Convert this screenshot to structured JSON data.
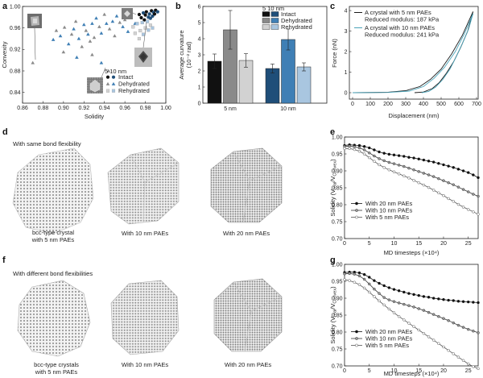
{
  "panels": {
    "a": "a",
    "b": "b",
    "c": "c",
    "d": "d",
    "e": "e",
    "f": "f",
    "g": "g"
  },
  "colors": {
    "black": "#111111",
    "dark_blue": "#1f4e79",
    "mid_blue": "#3f7fb5",
    "light_blue": "#a9c6e0",
    "dark_grey": "#222222",
    "mid_grey": "#8a8a8a",
    "light_grey": "#d2d2d2",
    "black_curve": "#1a1a1a",
    "teal_curve": "#4aa3b8"
  },
  "chart_data": [
    {
      "panel": "a",
      "type": "scatter",
      "xlabel": "Solidity",
      "ylabel": "Convexity",
      "xlim": [
        0.86,
        1.0
      ],
      "ylim": [
        0.82,
        1.0
      ],
      "xticks": [
        "0.86",
        "0.88",
        "0.90",
        "0.92",
        "0.94",
        "0.96",
        "0.98",
        "1.00"
      ],
      "yticks": [
        "0.84",
        "0.88",
        "0.92",
        "0.96",
        "1.00"
      ],
      "legend_header": "5 10 nm",
      "legend": [
        "Intact",
        "Dehydrated",
        "Rehydrated"
      ],
      "series": [
        {
          "name": "Intact",
          "marker": "circle",
          "points": [
            [
              0.974,
              0.985
            ],
            [
              0.978,
              0.988
            ],
            [
              0.981,
              0.99
            ],
            [
              0.984,
              0.986
            ],
            [
              0.986,
              0.992
            ],
            [
              0.988,
              0.989
            ],
            [
              0.99,
              0.993
            ],
            [
              0.983,
              0.98
            ],
            [
              0.98,
              0.984
            ],
            [
              0.987,
              0.982
            ],
            [
              0.976,
              0.979
            ],
            [
              0.985,
              0.978
            ],
            [
              0.989,
              0.986
            ],
            [
              0.992,
              0.99
            ],
            [
              0.979,
              0.975
            ]
          ]
        },
        {
          "name": "Dehydrated",
          "marker": "triangle",
          "points": [
            [
              0.87,
              0.895
            ],
            [
              0.89,
              0.938
            ],
            [
              0.893,
              0.955
            ],
            [
              0.897,
              0.945
            ],
            [
              0.901,
              0.961
            ],
            [
              0.905,
              0.93
            ],
            [
              0.908,
              0.948
            ],
            [
              0.91,
              0.958
            ],
            [
              0.912,
              0.972
            ],
            [
              0.915,
              0.94
            ],
            [
              0.918,
              0.925
            ],
            [
              0.92,
              0.966
            ],
            [
              0.922,
              0.955
            ],
            [
              0.924,
              0.948
            ],
            [
              0.926,
              0.935
            ],
            [
              0.928,
              0.968
            ],
            [
              0.93,
              0.942
            ],
            [
              0.932,
              0.978
            ],
            [
              0.935,
              0.962
            ],
            [
              0.937,
              0.95
            ],
            [
              0.94,
              0.985
            ],
            [
              0.942,
              0.968
            ],
            [
              0.945,
              0.958
            ],
            [
              0.948,
              0.972
            ],
            [
              0.95,
              0.945
            ],
            [
              0.952,
              0.982
            ],
            [
              0.955,
              0.97
            ],
            [
              0.958,
              0.962
            ],
            [
              0.96,
              0.975
            ],
            [
              0.963,
              0.953
            ],
            [
              0.966,
              0.98
            ],
            [
              0.97,
              0.968
            ],
            [
              0.9,
              0.915
            ],
            [
              0.913,
              0.905
            ],
            [
              0.928,
              0.91
            ],
            [
              0.937,
              0.895
            ],
            [
              0.944,
              0.88
            ]
          ]
        },
        {
          "name": "Rehydrated",
          "marker": "square",
          "points": [
            [
              0.968,
              0.962
            ],
            [
              0.972,
              0.968
            ],
            [
              0.975,
              0.955
            ],
            [
              0.977,
              0.97
            ],
            [
              0.98,
              0.96
            ],
            [
              0.982,
              0.972
            ],
            [
              0.985,
              0.965
            ],
            [
              0.978,
              0.948
            ],
            [
              0.974,
              0.94
            ],
            [
              0.983,
              0.956
            ],
            [
              0.97,
              0.95
            ],
            [
              0.987,
              0.96
            ]
          ]
        }
      ]
    },
    {
      "panel": "b",
      "type": "bar",
      "ylabel": "Average curvature (10⁻² rad)",
      "ylabel_main": "Average curvature",
      "ylabel_unit": "(10⁻² rad)",
      "ylim": [
        0,
        6
      ],
      "yticks": [
        "0",
        "1",
        "2",
        "3",
        "4",
        "5",
        "6"
      ],
      "categories": [
        "5 nm",
        "10 nm"
      ],
      "legend_header": "5 10 nm",
      "legend": [
        "Intact",
        "Dehydrated",
        "Rehydrated"
      ],
      "series": [
        {
          "name": "Intact",
          "values": [
            2.6,
            2.15
          ],
          "errors": [
            0.45,
            0.28
          ]
        },
        {
          "name": "Dehydrated",
          "values": [
            4.55,
            3.95
          ],
          "errors": [
            1.2,
            0.65
          ]
        },
        {
          "name": "Rehydrated",
          "values": [
            2.65,
            2.25
          ],
          "errors": [
            0.42,
            0.25
          ]
        }
      ]
    },
    {
      "panel": "c",
      "type": "line",
      "xlabel": "Displacement (nm)",
      "ylabel": "Force (nN)",
      "xlim": [
        0,
        700
      ],
      "ylim": [
        0,
        4.2
      ],
      "xticks": [
        "0",
        "100",
        "200",
        "300",
        "400",
        "500",
        "600",
        "700"
      ],
      "yticks": [
        "0",
        "1",
        "2",
        "3",
        "4"
      ],
      "legend": [
        {
          "line1": "A crystal with 5 nm PAEs",
          "line2": "Reduced modulus: 187 kPa"
        },
        {
          "line1": "A crystal with 10 nm PAEs",
          "line2": "Reduced modulus: 241 kPa"
        }
      ],
      "series": [
        {
          "name": "A crystal with 5 nm PAEs",
          "loading": [
            [
              0,
              0
            ],
            [
              200,
              0.02
            ],
            [
              300,
              0.1
            ],
            [
              380,
              0.3
            ],
            [
              440,
              0.65
            ],
            [
              500,
              1.15
            ],
            [
              560,
              1.9
            ],
            [
              620,
              2.8
            ],
            [
              680,
              3.95
            ]
          ],
          "unloading": [
            [
              680,
              3.95
            ],
            [
              650,
              3.0
            ],
            [
              610,
              2.2
            ],
            [
              570,
              1.5
            ],
            [
              530,
              0.95
            ],
            [
              490,
              0.5
            ],
            [
              450,
              0.2
            ],
            [
              400,
              0.03
            ],
            [
              350,
              0
            ]
          ]
        },
        {
          "name": "A crystal with 10 nm PAEs",
          "loading": [
            [
              0,
              0
            ],
            [
              200,
              0.01
            ],
            [
              320,
              0.08
            ],
            [
              400,
              0.3
            ],
            [
              460,
              0.7
            ],
            [
              520,
              1.25
            ],
            [
              580,
              2.0
            ],
            [
              630,
              2.85
            ],
            [
              680,
              3.85
            ]
          ],
          "unloading": [
            [
              680,
              3.85
            ],
            [
              655,
              3.1
            ],
            [
              620,
              2.4
            ],
            [
              585,
              1.75
            ],
            [
              550,
              1.15
            ],
            [
              510,
              0.65
            ],
            [
              470,
              0.28
            ],
            [
              430,
              0.06
            ],
            [
              390,
              0
            ]
          ]
        }
      ]
    },
    {
      "panel": "e",
      "type": "line",
      "xlabel": "MD timesteps (×10⁴)",
      "ylabel": "Solidity (V_real/V_Convex)",
      "xlim": [
        0,
        27
      ],
      "ylim": [
        0.7,
        1.0
      ],
      "xticks": [
        "0",
        "5",
        "10",
        "15",
        "20",
        "25"
      ],
      "yticks": [
        "0.70",
        "0.75",
        "0.80",
        "0.85",
        "0.90",
        "0.95",
        "1.00"
      ],
      "x": [
        0,
        1,
        2,
        3,
        4,
        5,
        6,
        7,
        8,
        9,
        10,
        11,
        12,
        13,
        14,
        15,
        16,
        17,
        18,
        19,
        20,
        21,
        22,
        23,
        24,
        25,
        26,
        27
      ],
      "series": [
        {
          "name": "With 20 nm PAEs",
          "marker": "filled",
          "values": [
            0.975,
            0.977,
            0.976,
            0.975,
            0.972,
            0.968,
            0.962,
            0.956,
            0.952,
            0.949,
            0.947,
            0.945,
            0.943,
            0.94,
            0.938,
            0.935,
            0.932,
            0.929,
            0.926,
            0.922,
            0.918,
            0.914,
            0.91,
            0.905,
            0.9,
            0.895,
            0.888,
            0.88
          ]
        },
        {
          "name": "With 10 nm PAEs",
          "marker": "grey",
          "values": [
            0.972,
            0.973,
            0.971,
            0.968,
            0.962,
            0.953,
            0.944,
            0.936,
            0.93,
            0.925,
            0.921,
            0.917,
            0.913,
            0.908,
            0.903,
            0.898,
            0.893,
            0.888,
            0.883,
            0.877,
            0.871,
            0.865,
            0.859,
            0.852,
            0.845,
            0.838,
            0.831,
            0.825
          ]
        },
        {
          "name": "With 5 nm PAEs",
          "marker": "open",
          "values": [
            0.966,
            0.966,
            0.963,
            0.958,
            0.95,
            0.939,
            0.928,
            0.918,
            0.91,
            0.903,
            0.897,
            0.891,
            0.885,
            0.879,
            0.872,
            0.865,
            0.858,
            0.851,
            0.843,
            0.835,
            0.827,
            0.818,
            0.81,
            0.801,
            0.793,
            0.786,
            0.779,
            0.772
          ]
        }
      ]
    },
    {
      "panel": "g",
      "type": "line",
      "xlabel": "MD timesteps (×10⁴)",
      "ylabel": "Solidity (V_real/V_Convex)",
      "xlim": [
        0,
        27
      ],
      "ylim": [
        0.7,
        1.0
      ],
      "xticks": [
        "0",
        "5",
        "10",
        "15",
        "20",
        "25"
      ],
      "yticks": [
        "0.70",
        "0.75",
        "0.80",
        "0.85",
        "0.90",
        "0.95",
        "1.00"
      ],
      "x": [
        0,
        1,
        2,
        3,
        4,
        5,
        6,
        7,
        8,
        9,
        10,
        11,
        12,
        13,
        14,
        15,
        16,
        17,
        18,
        19,
        20,
        21,
        22,
        23,
        24,
        25,
        26,
        27
      ],
      "series": [
        {
          "name": "With 20 nm PAEs",
          "marker": "filled",
          "values": [
            0.976,
            0.977,
            0.977,
            0.975,
            0.97,
            0.962,
            0.952,
            0.944,
            0.937,
            0.931,
            0.926,
            0.922,
            0.918,
            0.914,
            0.911,
            0.908,
            0.905,
            0.903,
            0.9,
            0.898,
            0.896,
            0.894,
            0.893,
            0.891,
            0.89,
            0.889,
            0.888,
            0.887
          ]
        },
        {
          "name": "With 10 nm PAEs",
          "marker": "grey",
          "values": [
            0.972,
            0.973,
            0.971,
            0.966,
            0.956,
            0.942,
            0.927,
            0.914,
            0.902,
            0.895,
            0.89,
            0.886,
            0.882,
            0.878,
            0.874,
            0.869,
            0.864,
            0.858,
            0.852,
            0.846,
            0.84,
            0.834,
            0.827,
            0.82,
            0.814,
            0.808,
            0.803,
            0.798
          ]
        },
        {
          "name": "With 5 nm PAEs",
          "marker": "open",
          "values": [
            0.955,
            0.952,
            0.947,
            0.94,
            0.93,
            0.918,
            0.905,
            0.892,
            0.88,
            0.868,
            0.857,
            0.846,
            0.836,
            0.826,
            0.816,
            0.806,
            0.796,
            0.786,
            0.776,
            0.766,
            0.756,
            0.746,
            0.736,
            0.726,
            0.716,
            0.706,
            0.698,
            0.692
          ]
        }
      ]
    }
  ],
  "panel_d": {
    "title": "With same bond flexibility",
    "labels": [
      "bcc-type crystal",
      "with 5 nm PAEs",
      "With 10 nm PAEs",
      "With 20 nm PAEs"
    ]
  },
  "panel_f": {
    "title": "With different bond flexibilities",
    "labels": [
      "bcc-type crystals",
      "with 5 nm PAEs",
      "With 10 nm PAEs",
      "With 20 nm PAEs"
    ]
  }
}
